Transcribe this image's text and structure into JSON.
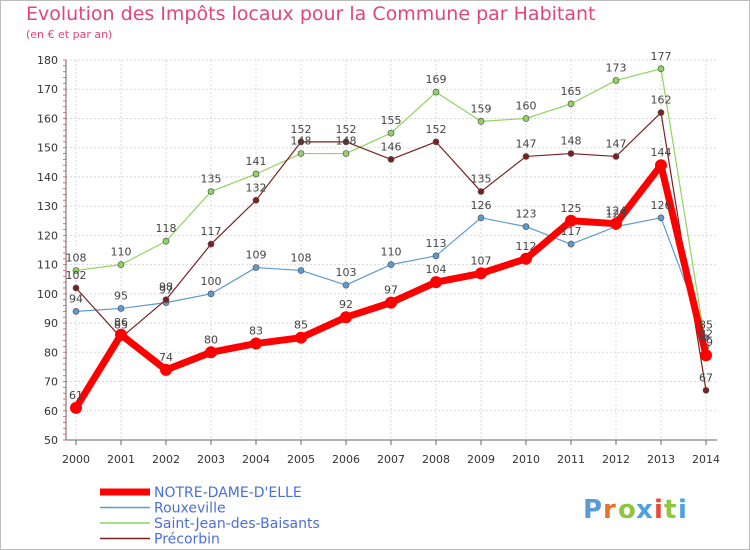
{
  "chart_data": {
    "type": "line",
    "title": "Evolution des Impôts locaux pour la Commune par Habitant",
    "subtitle": "(en € et par an)",
    "x": [
      "2000",
      "2001",
      "2002",
      "2003",
      "2004",
      "2005",
      "2006",
      "2007",
      "2008",
      "2009",
      "2010",
      "2011",
      "2012",
      "2013",
      "2014"
    ],
    "ylim": [
      50,
      180
    ],
    "yticks": [
      "50",
      "60",
      "70",
      "80",
      "90",
      "100",
      "110",
      "120",
      "130",
      "140",
      "150",
      "160",
      "170",
      "180"
    ],
    "grid": true,
    "legend_position": "bottom-left",
    "series": [
      {
        "name": "NOTRE-DAME-D'ELLE",
        "color": "#ff0000",
        "values": [
          61,
          86,
          74,
          80,
          83,
          85,
          92,
          97,
          104,
          107,
          112,
          125,
          124,
          144,
          79
        ],
        "labels": [
          "61",
          "86",
          "74",
          "80",
          "83",
          "85",
          "92",
          "97",
          "104",
          "107",
          "112",
          "125",
          "124",
          "144",
          "79"
        ]
      },
      {
        "name": "Rouxeville",
        "color": "#5b9bd5",
        "values": [
          94,
          95,
          97,
          100,
          109,
          108,
          103,
          110,
          113,
          126,
          123,
          117,
          123,
          126,
          85
        ],
        "labels": [
          "94",
          "95",
          "97",
          "100",
          "109",
          "108",
          "103",
          "110",
          "113",
          "126",
          "123",
          "117",
          "123",
          "126",
          "85"
        ]
      },
      {
        "name": "Saint-Jean-des-Baisants",
        "color": "#8fd460",
        "values": [
          108,
          110,
          118,
          135,
          141,
          148,
          148,
          155,
          169,
          159,
          160,
          165,
          173,
          177,
          82
        ],
        "labels": [
          "108",
          "110",
          "118",
          "135",
          "141",
          "148",
          "148",
          "155",
          "169",
          "159",
          "160",
          "165",
          "173",
          "177",
          "82"
        ]
      },
      {
        "name": "Précorbin",
        "color": "#7b2020",
        "values": [
          102,
          85,
          98,
          117,
          132,
          152,
          152,
          146,
          152,
          135,
          147,
          148,
          147,
          162,
          67
        ],
        "labels": [
          "102",
          "85",
          "98",
          "117",
          "132",
          "152",
          "152",
          "146",
          "152",
          "135",
          "147",
          "148",
          "147",
          "162",
          "67"
        ]
      }
    ]
  },
  "legend": {
    "notre_dame": "NOTRE-DAME-D'ELLE",
    "rouxeville": "Rouxeville",
    "saint_jean": "Saint-Jean-des-Baisants",
    "precorbin": "Précorbin"
  },
  "logo": {
    "text": "Proxiti",
    "colors": [
      "#5b9bd5",
      "#e8732a",
      "#8fc640",
      "#4aa3df",
      "#e84a3a",
      "#8fc640",
      "#4aa3df"
    ]
  }
}
